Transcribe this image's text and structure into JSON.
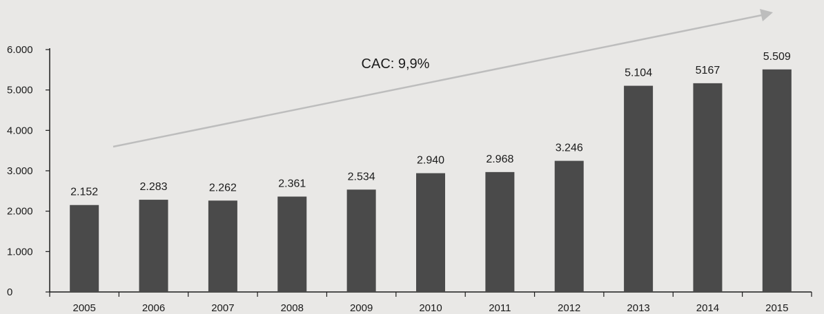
{
  "chart_data": {
    "type": "bar",
    "categories": [
      "2005",
      "2006",
      "2007",
      "2008",
      "2009",
      "2010",
      "2011",
      "2012",
      "2013",
      "2014",
      "2015"
    ],
    "values": [
      2152,
      2283,
      2262,
      2361,
      2534,
      2940,
      2968,
      3246,
      5104,
      5167,
      5509
    ],
    "data_labels": [
      "2.152",
      "2.283",
      "2.262",
      "2.361",
      "2.534",
      "2.940",
      "2.968",
      "3.246",
      "5.104",
      "5167",
      "5.509"
    ],
    "y_ticks": [
      0,
      1000,
      2000,
      3000,
      4000,
      5000,
      6000
    ],
    "y_tick_labels": [
      "0",
      "1.000",
      "2.000",
      "3.000",
      "4.000",
      "5.000",
      "6.000"
    ],
    "ylim": [
      0,
      6000
    ],
    "grid": false,
    "annotation": "CAC: 9,9%",
    "colors": {
      "bar": "#4a4a4a",
      "arrow": "#bdbdbd",
      "axis": "#1a1a1a",
      "background": "#e9e8e6"
    }
  }
}
